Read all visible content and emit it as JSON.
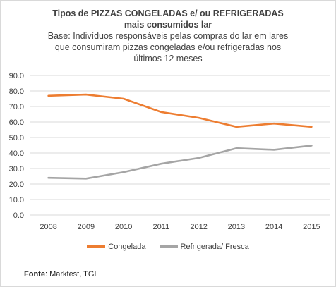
{
  "title": {
    "line1": "Tipos de PIZZAS CONGELADAS e/ ou REFRIGERADAS",
    "line2": "mais consumidos lar"
  },
  "subtitle": "Base: Indivíduos responsáveis pelas compras do lar em lares que consumiram pizzas congeladas e/ou refrigeradas nos últimos 12 meses",
  "source": {
    "label": "Fonte",
    "text": ": Marktest, TGI"
  },
  "colors": {
    "congelada": "#ED7D31",
    "refrigerada": "#A5A5A5",
    "grid": "#D9D9D9"
  },
  "chart_data": {
    "type": "line",
    "title": "Tipos de PIZZAS CONGELADAS e/ ou REFRIGERADAS mais consumidos lar",
    "categories": [
      "2008",
      "2009",
      "2010",
      "2011",
      "2012",
      "2013",
      "2014",
      "2015"
    ],
    "y_ticks": [
      "0.0",
      "10.0",
      "20.0",
      "30.0",
      "40.0",
      "50.0",
      "60.0",
      "70.0",
      "80.0",
      "90.0"
    ],
    "ylim": [
      0,
      90
    ],
    "grid": true,
    "legend_position": "bottom",
    "series": [
      {
        "name": "Congelada",
        "values": [
          76.9,
          77.7,
          75.0,
          66.4,
          62.7,
          56.9,
          59.0,
          56.9
        ]
      },
      {
        "name": "Refrigerada/ Fresca",
        "values": [
          24.0,
          23.5,
          27.7,
          33.1,
          36.8,
          43.1,
          42.1,
          44.8
        ]
      }
    ]
  }
}
